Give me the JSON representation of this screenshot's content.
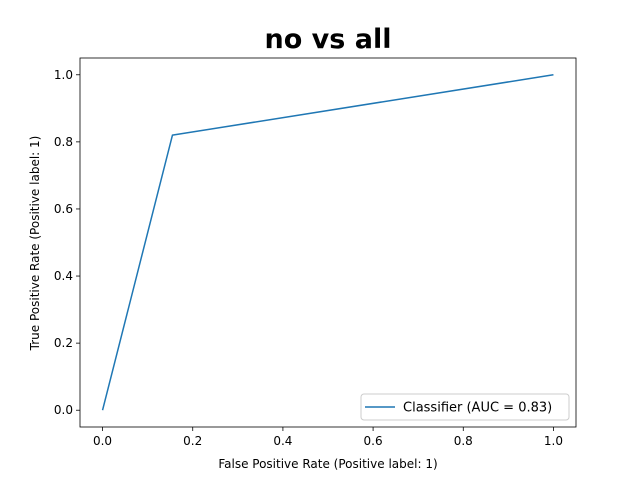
{
  "chart_data": {
    "type": "line",
    "title": "no vs all",
    "xlabel": "False Positive Rate (Positive label: 1)",
    "ylabel": "True Positive Rate (Positive label: 1)",
    "xlim": [
      -0.05,
      1.05
    ],
    "ylim": [
      -0.05,
      1.05
    ],
    "xticks": [
      0.0,
      0.2,
      0.4,
      0.6,
      0.8,
      1.0
    ],
    "yticks": [
      0.0,
      0.2,
      0.4,
      0.6,
      0.8,
      1.0
    ],
    "xtick_labels": [
      "0.0",
      "0.2",
      "0.4",
      "0.6",
      "0.8",
      "1.0"
    ],
    "ytick_labels": [
      "0.0",
      "0.2",
      "0.4",
      "0.6",
      "0.8",
      "1.0"
    ],
    "grid": false,
    "legend_position": "lower-right",
    "series": [
      {
        "name": "Classifier (AUC = 0.83)",
        "color": "#1f77b4",
        "x": [
          0.0,
          0.155,
          1.0
        ],
        "y": [
          0.0,
          0.82,
          1.0
        ]
      }
    ]
  }
}
